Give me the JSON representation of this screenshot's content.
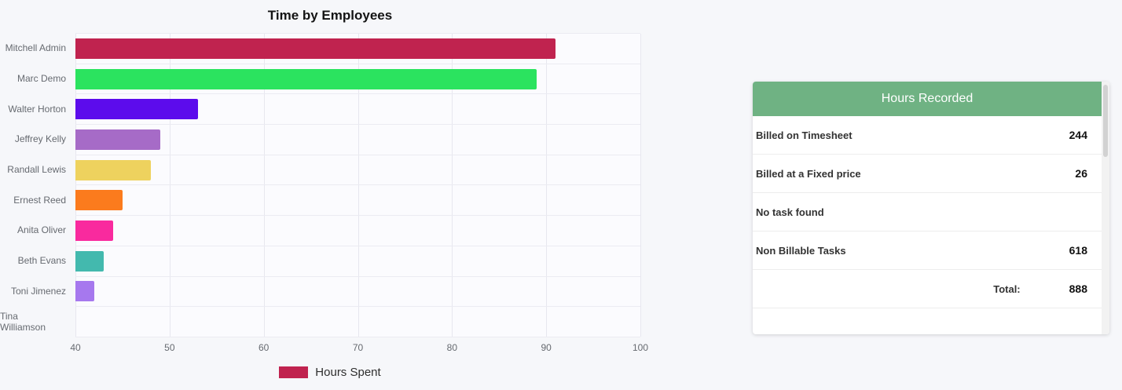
{
  "chart": {
    "legend": {
      "label": "Hours Spent",
      "color": "#c0234f"
    }
  },
  "chart_data": {
    "type": "bar",
    "orientation": "horizontal",
    "title": "Time by Employees",
    "series_name": "Hours Spent",
    "categories": [
      "Mitchell Admin",
      "Marc Demo",
      "Walter Horton",
      "Jeffrey Kelly",
      "Randall Lewis",
      "Ernest Reed",
      "Anita Oliver",
      "Beth Evans",
      "Toni Jimenez",
      "Tina Williamson"
    ],
    "values": [
      91,
      89,
      53,
      49,
      48,
      45,
      44,
      43,
      42,
      40
    ],
    "bar_colors": [
      "#c0234f",
      "#2be35f",
      "#5c0cec",
      "#a66bc7",
      "#eed25e",
      "#fb7b1d",
      "#f92a9e",
      "#43b9ae",
      "#a678ee",
      "#cccccc"
    ],
    "xlim": [
      40,
      100
    ],
    "xticks": [
      40,
      50,
      60,
      70,
      80,
      90,
      100
    ],
    "grid": true,
    "legend_position": "bottom"
  },
  "panel": {
    "title": "Hours Recorded",
    "header_color": "#6fb283",
    "rows": [
      {
        "label": "Billed on Timesheet",
        "value": "244"
      },
      {
        "label": "Billed at a Fixed price",
        "value": "26"
      },
      {
        "label": "No task found",
        "value": ""
      },
      {
        "label": "Non Billable Tasks",
        "value": "618"
      }
    ],
    "total": {
      "label": "Total:",
      "value": "888"
    }
  }
}
